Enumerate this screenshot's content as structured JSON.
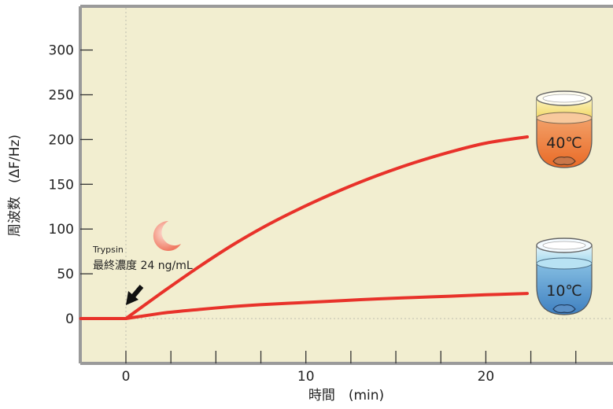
{
  "chart_data": {
    "type": "line",
    "xlabel": "時間　(min)",
    "ylabel": "周波数　(ΔF/Hz)",
    "xlim": [
      -2.5,
      27
    ],
    "ylim": [
      -50,
      350
    ],
    "x_ticks": [
      0,
      10,
      20
    ],
    "y_ticks": [
      0,
      50,
      100,
      150,
      200,
      250,
      300
    ],
    "grid": false,
    "series": [
      {
        "name": "40℃",
        "color": "#e8322a",
        "x": [
          -2.5,
          0,
          2,
          4,
          6,
          8,
          10,
          12,
          14,
          16,
          18,
          20,
          22.3
        ],
        "y": [
          0,
          0,
          29,
          57,
          83,
          106,
          126,
          144,
          160,
          174,
          186,
          196,
          203
        ]
      },
      {
        "name": "10℃",
        "color": "#e8322a",
        "x": [
          -2.5,
          0,
          2,
          4,
          6,
          8,
          10,
          12,
          14,
          16,
          18,
          20,
          22.3
        ],
        "y": [
          0,
          0,
          6,
          10,
          13.5,
          16,
          18,
          20,
          22,
          23.5,
          25,
          26.5,
          28
        ]
      }
    ],
    "annotations": {
      "enzyme_name": "Trypsin",
      "concentration": "最終濃度 24 ng/mL",
      "cup_hot_label": "40℃",
      "cup_cold_label": "10℃"
    }
  },
  "colors": {
    "plot_background": "#f2eed0",
    "frame": "#9a9a9a",
    "curve": "#e8322a"
  }
}
